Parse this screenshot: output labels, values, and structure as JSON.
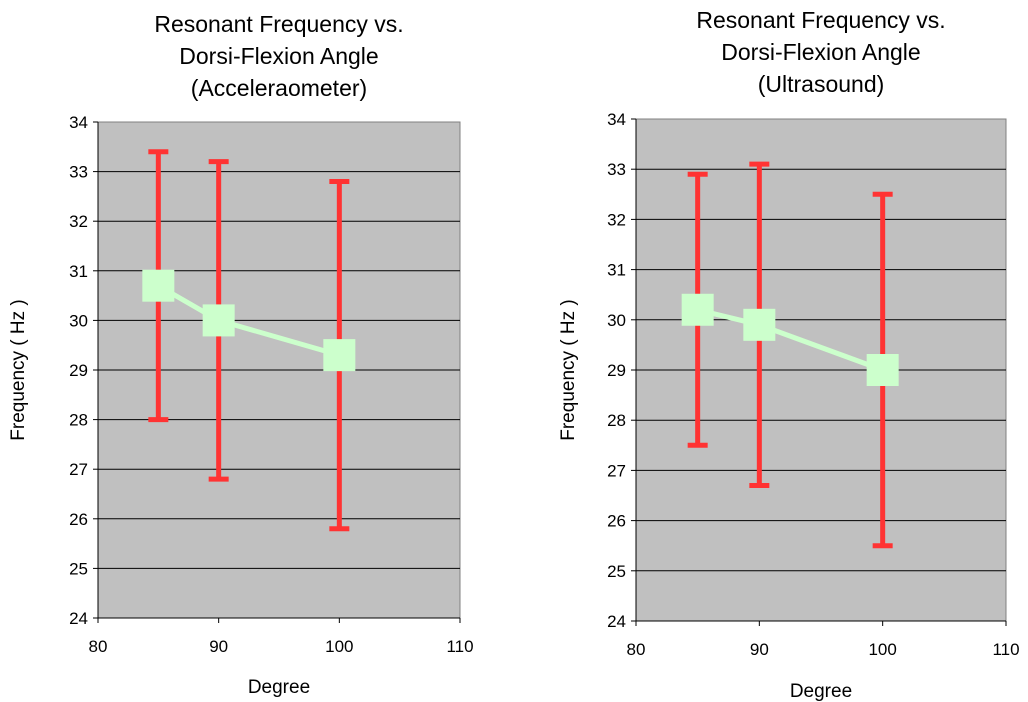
{
  "chart_data": [
    {
      "type": "line",
      "title_lines": [
        "Resonant Frequency vs.",
        "Dorsi-Flexion Angle",
        "(Acceleraometer)"
      ],
      "xlabel": "Degree",
      "ylabel": "Frequency ( Hz )",
      "xlim": [
        80,
        110
      ],
      "ylim": [
        24,
        34
      ],
      "xticks": [
        80,
        90,
        100,
        110
      ],
      "yticks": [
        24,
        25,
        26,
        27,
        28,
        29,
        30,
        31,
        32,
        33,
        34
      ],
      "grid": "horizontal",
      "legend": "none",
      "series": [
        {
          "x": [
            85,
            90,
            100
          ],
          "y": [
            30.7,
            30.0,
            29.3
          ],
          "error_low": [
            28.0,
            26.8,
            25.8
          ],
          "error_high": [
            33.4,
            33.2,
            32.8
          ]
        }
      ],
      "colors": {
        "plot_bg": "#c0c0c0",
        "line": "#ccffcc",
        "marker": "#ccffcc",
        "error_bar": "#ff3333",
        "grid": "#000000"
      }
    },
    {
      "type": "line",
      "title_lines": [
        "Resonant Frequency vs.",
        "Dorsi-Flexion Angle",
        "(Ultrasound)"
      ],
      "xlabel": "Degree",
      "ylabel": "Frequency ( Hz )",
      "xlim": [
        80,
        110
      ],
      "ylim": [
        24,
        34
      ],
      "xticks": [
        80,
        90,
        100,
        110
      ],
      "yticks": [
        24,
        25,
        26,
        27,
        28,
        29,
        30,
        31,
        32,
        33,
        34
      ],
      "grid": "horizontal",
      "legend": "none",
      "series": [
        {
          "x": [
            85,
            90,
            100
          ],
          "y": [
            30.2,
            29.9,
            29.0
          ],
          "error_low": [
            27.5,
            26.7,
            25.5
          ],
          "error_high": [
            32.9,
            33.1,
            32.5
          ]
        }
      ],
      "colors": {
        "plot_bg": "#c0c0c0",
        "line": "#ccffcc",
        "marker": "#ccffcc",
        "error_bar": "#ff3333",
        "grid": "#000000"
      }
    }
  ]
}
